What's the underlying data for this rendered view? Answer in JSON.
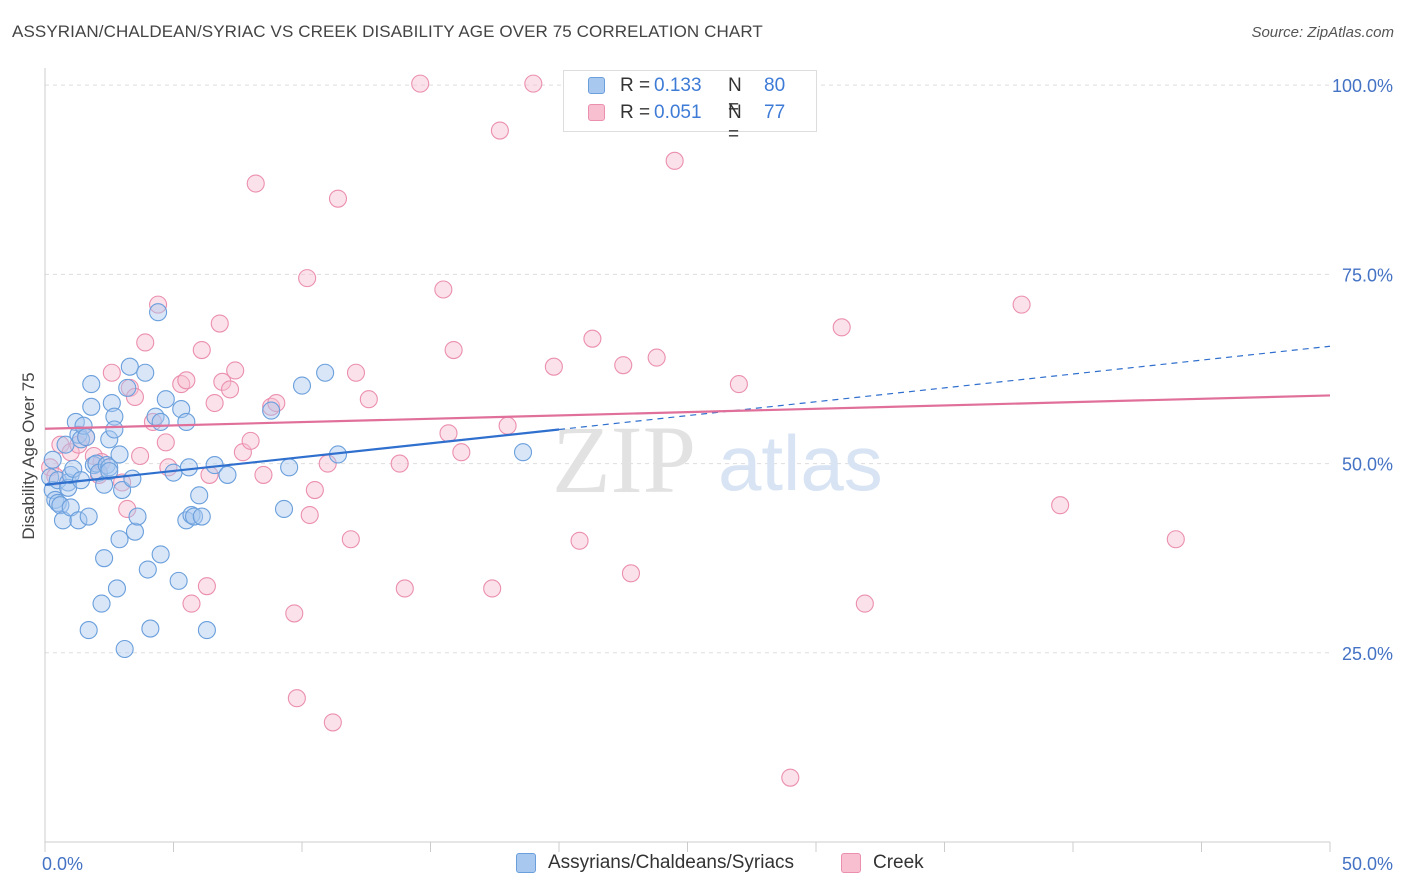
{
  "title": "ASSYRIAN/CHALDEAN/SYRIAC VS CREEK DISABILITY AGE OVER 75 CORRELATION CHART",
  "source": "Source: ZipAtlas.com",
  "watermark": {
    "zip": "ZIP",
    "atlas": "atlas"
  },
  "legend_top": {
    "rows": [
      {
        "r_label": "R =",
        "r_value": "0.133",
        "n_label": "N =",
        "n_value": "80"
      },
      {
        "r_label": "R =",
        "r_value": "0.051",
        "n_label": "N =",
        "n_value": "77"
      }
    ]
  },
  "legend_bottom": {
    "series1": "Assyrians/Chaldeans/Syriacs",
    "series2": "Creek"
  },
  "colors": {
    "blue_fill": "#a8c8f0",
    "blue_stroke": "#6a9fdc",
    "blue_line": "#2f6fce",
    "pink_fill": "#f7bfd0",
    "pink_stroke": "#eb8fae",
    "pink_line": "#e0709a",
    "axis_text": "#4472c4",
    "grid": "#dddddd"
  },
  "chart_data": {
    "type": "scatter",
    "title": "ASSYRIAN/CHALDEAN/SYRIAC VS CREEK DISABILITY AGE OVER 75 CORRELATION CHART",
    "xlabel": "",
    "ylabel": "Disability Age Over 75",
    "xlim": [
      0,
      50
    ],
    "ylim": [
      0,
      102
    ],
    "x_tick_labels": [
      "0.0%",
      "50.0%"
    ],
    "y_ticks": [
      25,
      50,
      75,
      100
    ],
    "y_tick_labels": [
      "25.0%",
      "50.0%",
      "75.0%",
      "100.0%"
    ],
    "grid": true,
    "legend_position": "top-center",
    "series": [
      {
        "name": "Assyrians/Chaldeans/Syriacs",
        "R": 0.133,
        "N": 80,
        "trend": {
          "x0": 0,
          "y0": 47.2,
          "x1": 20,
          "y1": 54.5,
          "dash_to_x": 50,
          "dash_to_y": 65.5
        },
        "points": [
          [
            0.2,
            48.2
          ],
          [
            0.3,
            50.5
          ],
          [
            0.3,
            46.5
          ],
          [
            0.4,
            45.2
          ],
          [
            0.5,
            44.8
          ],
          [
            0.5,
            47.8
          ],
          [
            0.6,
            44.5
          ],
          [
            0.7,
            42.5
          ],
          [
            0.8,
            52.5
          ],
          [
            0.9,
            47.5
          ],
          [
            0.9,
            46.8
          ],
          [
            1.0,
            44.2
          ],
          [
            1.0,
            48.5
          ],
          [
            1.1,
            49.3
          ],
          [
            1.2,
            55.5
          ],
          [
            1.3,
            42.5
          ],
          [
            1.3,
            53.8
          ],
          [
            1.4,
            47.8
          ],
          [
            1.4,
            53.2
          ],
          [
            1.5,
            55.0
          ],
          [
            1.6,
            53.5
          ],
          [
            1.7,
            28.0
          ],
          [
            1.7,
            43.0
          ],
          [
            1.8,
            60.5
          ],
          [
            1.8,
            57.5
          ],
          [
            1.9,
            49.8
          ],
          [
            2.0,
            50.0
          ],
          [
            2.1,
            48.8
          ],
          [
            2.2,
            31.5
          ],
          [
            2.3,
            47.2
          ],
          [
            2.3,
            37.5
          ],
          [
            2.4,
            49.8
          ],
          [
            2.5,
            53.2
          ],
          [
            2.5,
            49.5
          ],
          [
            2.5,
            49.0
          ],
          [
            2.6,
            58.0
          ],
          [
            2.7,
            56.2
          ],
          [
            2.7,
            54.5
          ],
          [
            2.8,
            33.5
          ],
          [
            2.9,
            51.2
          ],
          [
            2.9,
            40.0
          ],
          [
            3.0,
            46.5
          ],
          [
            3.1,
            25.5
          ],
          [
            3.2,
            60.0
          ],
          [
            3.3,
            62.8
          ],
          [
            3.4,
            48.0
          ],
          [
            3.5,
            41.0
          ],
          [
            3.6,
            43.0
          ],
          [
            3.9,
            62.0
          ],
          [
            4.0,
            36.0
          ],
          [
            4.1,
            28.2
          ],
          [
            4.3,
            56.2
          ],
          [
            4.4,
            70.0
          ],
          [
            4.5,
            55.5
          ],
          [
            4.5,
            38.0
          ],
          [
            4.7,
            58.5
          ],
          [
            5.0,
            48.8
          ],
          [
            5.2,
            34.5
          ],
          [
            5.3,
            57.2
          ],
          [
            5.5,
            55.5
          ],
          [
            5.5,
            42.5
          ],
          [
            5.6,
            49.5
          ],
          [
            5.7,
            43.2
          ],
          [
            5.8,
            43.0
          ],
          [
            6.0,
            45.8
          ],
          [
            6.1,
            43.0
          ],
          [
            6.3,
            28.0
          ],
          [
            6.6,
            49.8
          ],
          [
            7.1,
            48.5
          ],
          [
            8.8,
            57.0
          ],
          [
            9.3,
            44.0
          ],
          [
            9.5,
            49.5
          ],
          [
            10.0,
            60.3
          ],
          [
            10.9,
            62.0
          ],
          [
            11.4,
            51.2
          ],
          [
            18.6,
            51.5
          ]
        ]
      },
      {
        "name": "Creek",
        "R": 0.051,
        "N": 77,
        "trend": {
          "x0": 0,
          "y0": 54.6,
          "x1": 50,
          "y1": 59.0
        },
        "points": [
          [
            0.2,
            49.5
          ],
          [
            0.4,
            48.3
          ],
          [
            0.6,
            52.5
          ],
          [
            1.0,
            51.5
          ],
          [
            1.3,
            52.5
          ],
          [
            1.6,
            53.5
          ],
          [
            1.9,
            51.0
          ],
          [
            2.1,
            48.5
          ],
          [
            2.2,
            50.2
          ],
          [
            2.6,
            62.0
          ],
          [
            3.0,
            47.5
          ],
          [
            3.2,
            44.0
          ],
          [
            3.3,
            60.0
          ],
          [
            3.5,
            58.8
          ],
          [
            3.7,
            51.0
          ],
          [
            3.9,
            66.0
          ],
          [
            4.2,
            55.5
          ],
          [
            4.4,
            71.0
          ],
          [
            4.7,
            52.8
          ],
          [
            4.8,
            49.5
          ],
          [
            5.3,
            60.5
          ],
          [
            5.5,
            61.0
          ],
          [
            5.7,
            31.5
          ],
          [
            6.1,
            65.0
          ],
          [
            6.3,
            33.8
          ],
          [
            6.4,
            48.5
          ],
          [
            6.6,
            58.0
          ],
          [
            6.8,
            68.5
          ],
          [
            6.9,
            60.8
          ],
          [
            7.2,
            59.8
          ],
          [
            7.4,
            62.3
          ],
          [
            7.7,
            51.5
          ],
          [
            8.0,
            53.0
          ],
          [
            8.2,
            87.0
          ],
          [
            8.5,
            48.5
          ],
          [
            8.8,
            57.5
          ],
          [
            9.0,
            58.0
          ],
          [
            9.7,
            30.2
          ],
          [
            9.8,
            19.0
          ],
          [
            10.2,
            74.5
          ],
          [
            10.3,
            43.2
          ],
          [
            10.5,
            46.5
          ],
          [
            11.0,
            50.0
          ],
          [
            11.2,
            15.8
          ],
          [
            11.4,
            85.0
          ],
          [
            11.9,
            40.0
          ],
          [
            12.1,
            62.0
          ],
          [
            12.6,
            58.5
          ],
          [
            13.8,
            50.0
          ],
          [
            14.0,
            33.5
          ],
          [
            14.6,
            100.2
          ],
          [
            15.5,
            73.0
          ],
          [
            15.7,
            54.0
          ],
          [
            15.9,
            65.0
          ],
          [
            16.2,
            51.5
          ],
          [
            17.4,
            33.5
          ],
          [
            17.7,
            94.0
          ],
          [
            18.0,
            55.0
          ],
          [
            19.0,
            100.2
          ],
          [
            19.8,
            62.8
          ],
          [
            20.8,
            39.8
          ],
          [
            21.3,
            66.5
          ],
          [
            22.5,
            63.0
          ],
          [
            22.8,
            35.5
          ],
          [
            23.8,
            64.0
          ],
          [
            24.5,
            90.0
          ],
          [
            27.0,
            60.5
          ],
          [
            29.0,
            8.5
          ],
          [
            31.0,
            68.0
          ],
          [
            31.9,
            31.5
          ],
          [
            38.0,
            71.0
          ],
          [
            39.5,
            44.5
          ],
          [
            44.0,
            40.0
          ]
        ]
      }
    ]
  }
}
